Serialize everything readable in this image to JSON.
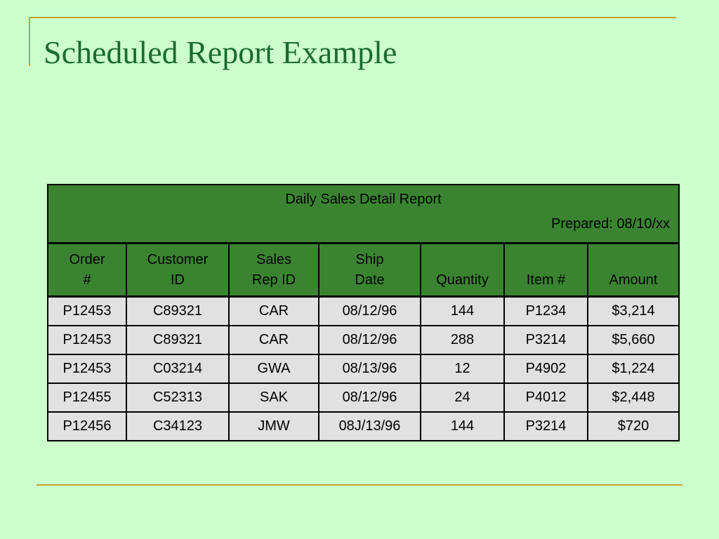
{
  "slide": {
    "title": "Scheduled Report Example"
  },
  "report": {
    "title": "Daily Sales Detail Report",
    "prepared": "Prepared: 08/10/xx",
    "columns": [
      {
        "line1": "Order",
        "line2": "#"
      },
      {
        "line1": "Customer",
        "line2": "ID"
      },
      {
        "line1": "Sales",
        "line2": "Rep ID"
      },
      {
        "line1": "Ship",
        "line2": "Date"
      },
      {
        "line1": "",
        "line2": "Quantity"
      },
      {
        "line1": "",
        "line2": "Item #"
      },
      {
        "line1": "",
        "line2": "Amount"
      }
    ],
    "rows": [
      [
        "P12453",
        "C89321",
        "CAR",
        "08/12/96",
        "144",
        "P1234",
        "$3,214"
      ],
      [
        "P12453",
        "C89321",
        "CAR",
        "08/12/96",
        "288",
        "P3214",
        "$5,660"
      ],
      [
        "P12453",
        "C03214",
        "GWA",
        "08/13/96",
        "12",
        "P4902",
        "$1,224"
      ],
      [
        "P12455",
        "C52313",
        "SAK",
        "08/12/96",
        "24",
        "P4012",
        "$2,448"
      ],
      [
        "P12456",
        "C34123",
        "JMW",
        "08J/13/96",
        "144",
        "P3214",
        "$720"
      ]
    ]
  },
  "colors": {
    "background": "#ccffcc",
    "title_text": "#1a6b2e",
    "frame_rule": "#c8a030",
    "header_fill": "#3a8431",
    "row_fill": "#e1e1e1"
  }
}
